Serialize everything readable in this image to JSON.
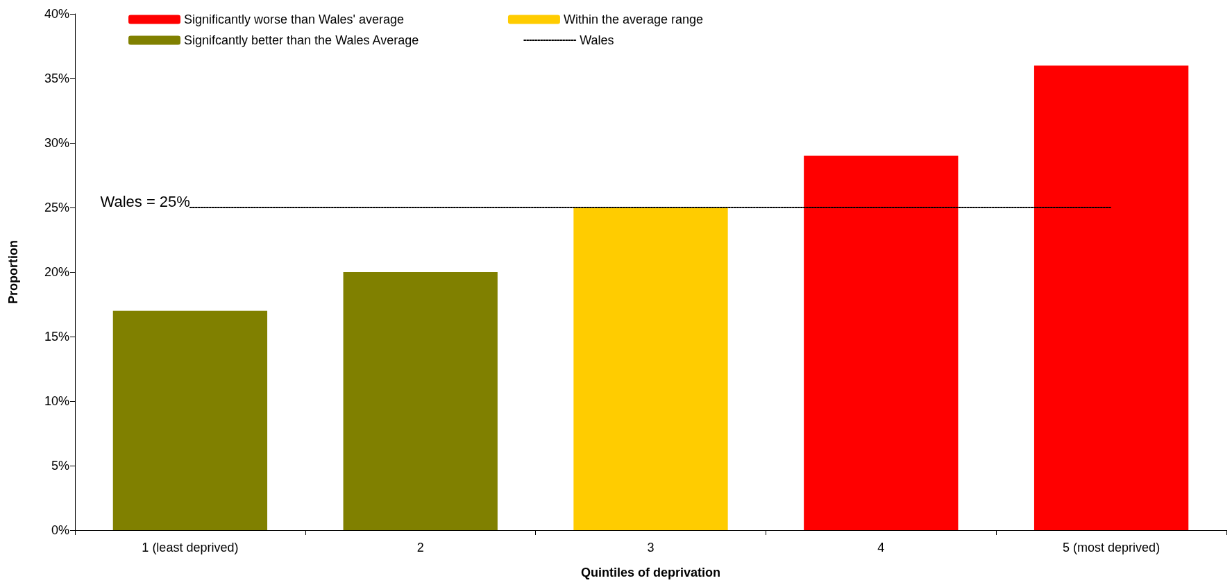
{
  "chart_data": {
    "type": "bar",
    "xlabel": "Quintiles of deprivation",
    "ylabel": "Proportion",
    "categories": [
      "1 (least deprived)",
      "2",
      "3",
      "4",
      "5 (most deprived)"
    ],
    "stacked": true,
    "series": [
      {
        "name": "Significantly worse than Wales' average",
        "color": "#ff0000",
        "values": [
          null,
          null,
          null,
          29,
          36
        ]
      },
      {
        "name": "Within the average range",
        "color": "#ffcc00",
        "values": [
          null,
          null,
          25,
          null,
          null
        ]
      },
      {
        "name": "Signifcantly better than the Wales Average",
        "color": "#808000",
        "values": [
          17,
          20,
          null,
          null,
          null
        ]
      },
      {
        "name": "Wales",
        "type": "line",
        "color": "#000000",
        "line_style": "dotted",
        "marker": "none",
        "values": [
          25,
          25,
          25,
          25,
          25
        ]
      }
    ],
    "ylim": [
      0,
      40
    ],
    "yticks": [
      {
        "value": 0,
        "label": "0%"
      },
      {
        "value": 5,
        "label": "5%"
      },
      {
        "value": 10,
        "label": "10%"
      },
      {
        "value": 15,
        "label": "15%"
      },
      {
        "value": 20,
        "label": "20%"
      },
      {
        "value": 25,
        "label": "25%"
      },
      {
        "value": 30,
        "label": "30%"
      },
      {
        "value": 35,
        "label": "35%"
      },
      {
        "value": 40,
        "label": "40%"
      }
    ],
    "grid": false,
    "legend": "top",
    "annotations": [
      {
        "text": "Wales = 25%",
        "x": "1 (least deprived)",
        "y": 25
      }
    ]
  }
}
